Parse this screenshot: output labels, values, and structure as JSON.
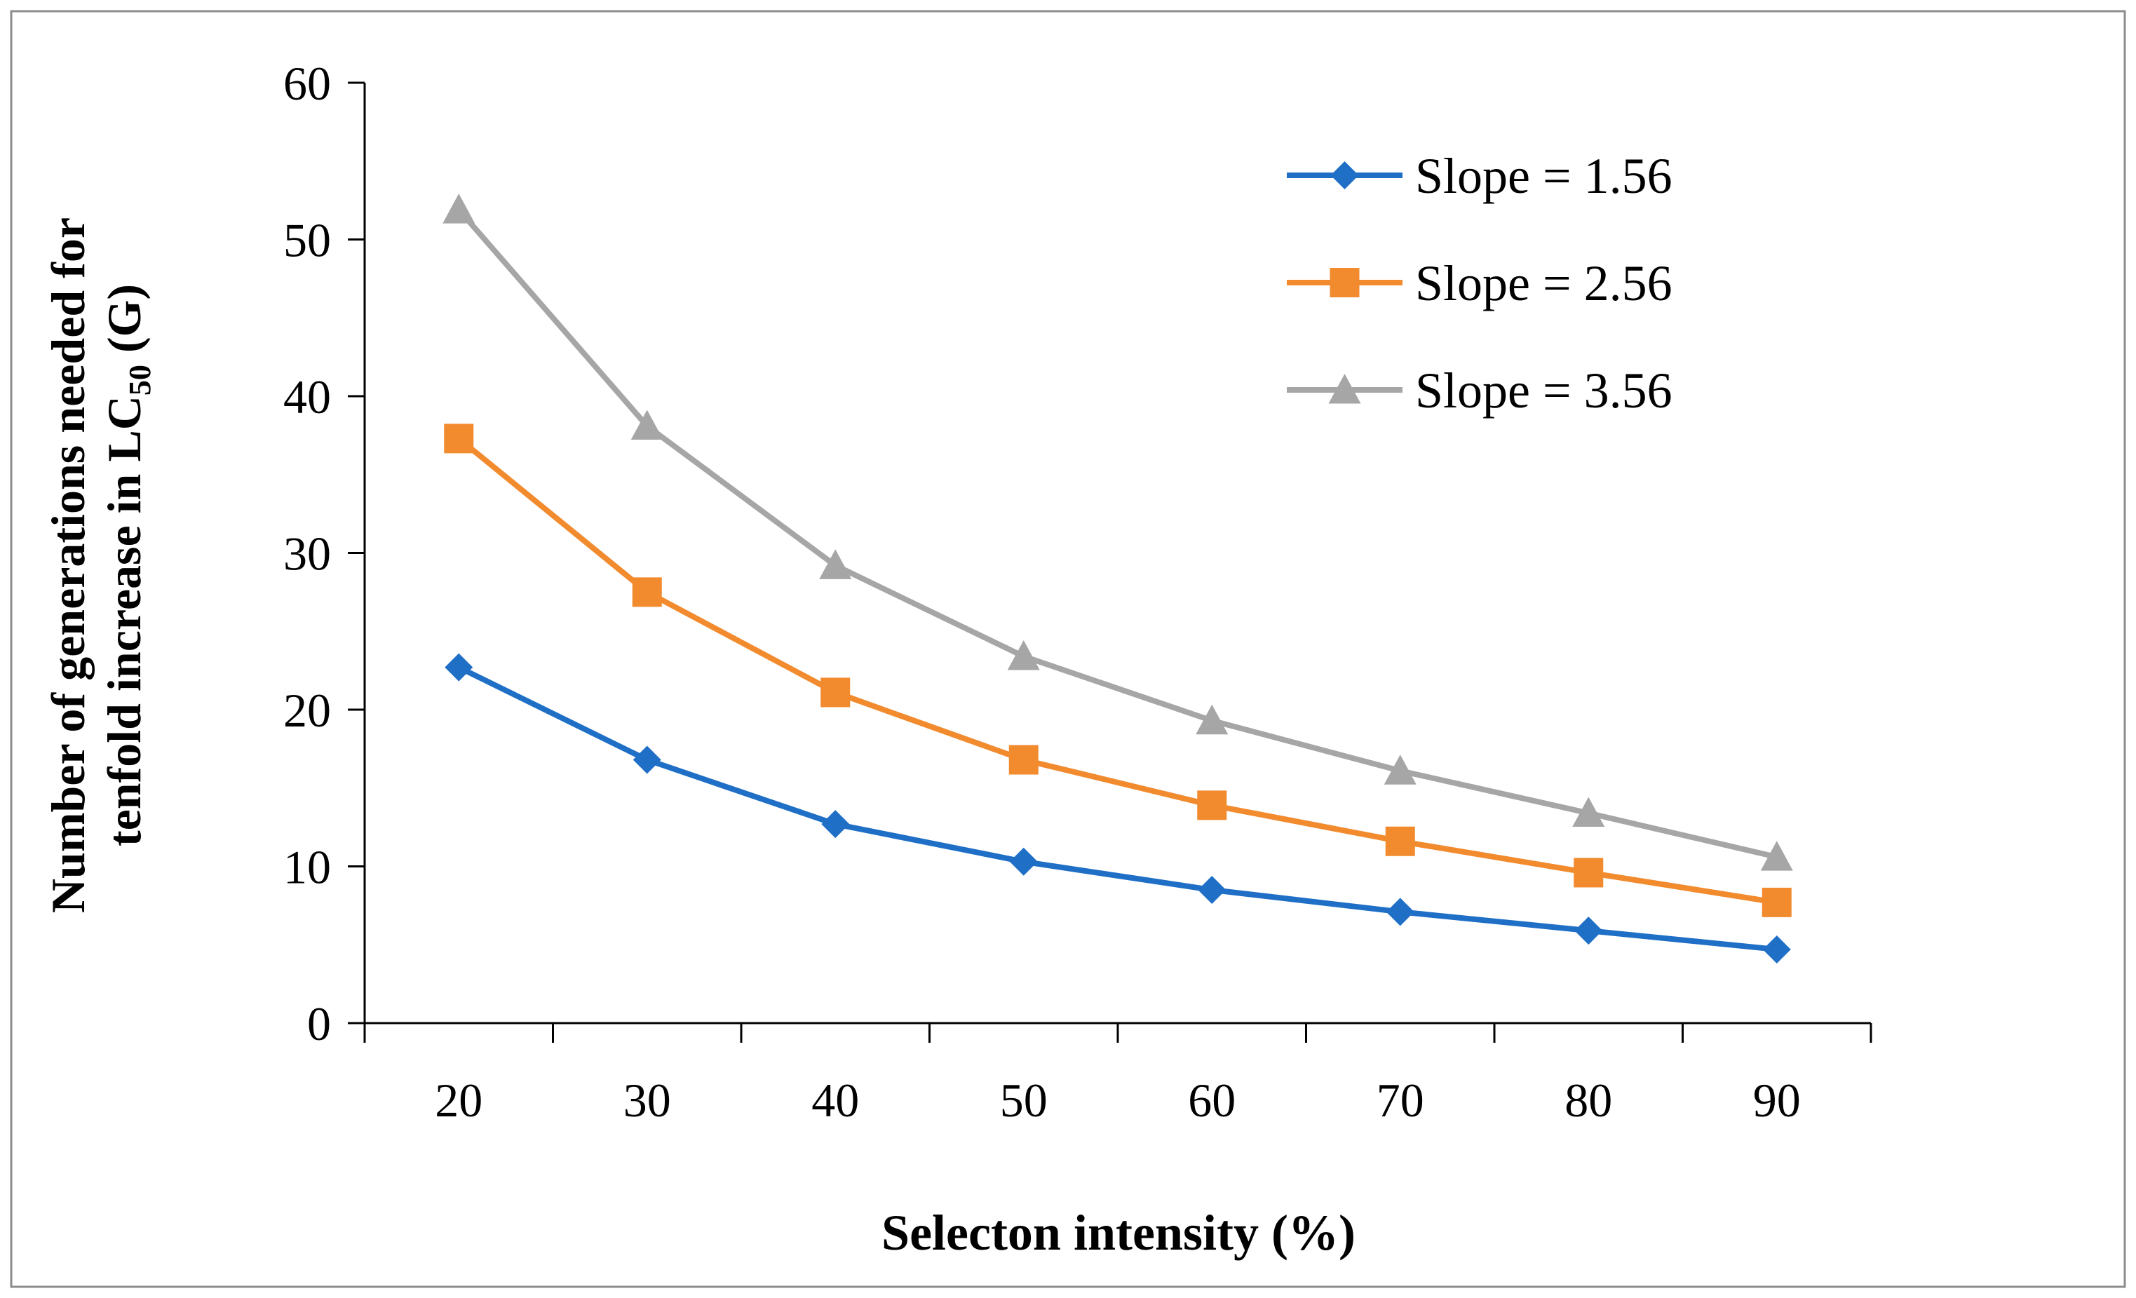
{
  "chart_data": {
    "type": "line",
    "title": "",
    "xlabel": "Selecton intensity (%)",
    "ylabel_main": "Number of generations needed for",
    "ylabel_line2_prefix": "tenfold increase in LC",
    "ylabel_subscript": "50",
    "ylabel_line2_suffix": " (G)",
    "categories": [
      "20",
      "30",
      "40",
      "50",
      "60",
      "70",
      "80",
      "90"
    ],
    "ylim": [
      0,
      60
    ],
    "yticks": [
      "0",
      "10",
      "20",
      "30",
      "40",
      "50",
      "60"
    ],
    "grid": false,
    "legend_position": "top-right",
    "series": [
      {
        "name": "Slope = 1.56",
        "color": "#1F6FC6",
        "marker": "diamond",
        "values": [
          22.7,
          16.8,
          12.7,
          10.3,
          8.5,
          7.1,
          5.9,
          4.7
        ]
      },
      {
        "name": "Slope = 2.56",
        "color": "#F28A2E",
        "marker": "square",
        "values": [
          37.3,
          27.5,
          21.1,
          16.8,
          13.9,
          11.6,
          9.6,
          7.7
        ]
      },
      {
        "name": "Slope = 3.56",
        "color": "#A6A6A6",
        "marker": "triangle",
        "values": [
          51.9,
          38.1,
          29.2,
          23.4,
          19.3,
          16.1,
          13.4,
          10.6
        ]
      }
    ]
  }
}
